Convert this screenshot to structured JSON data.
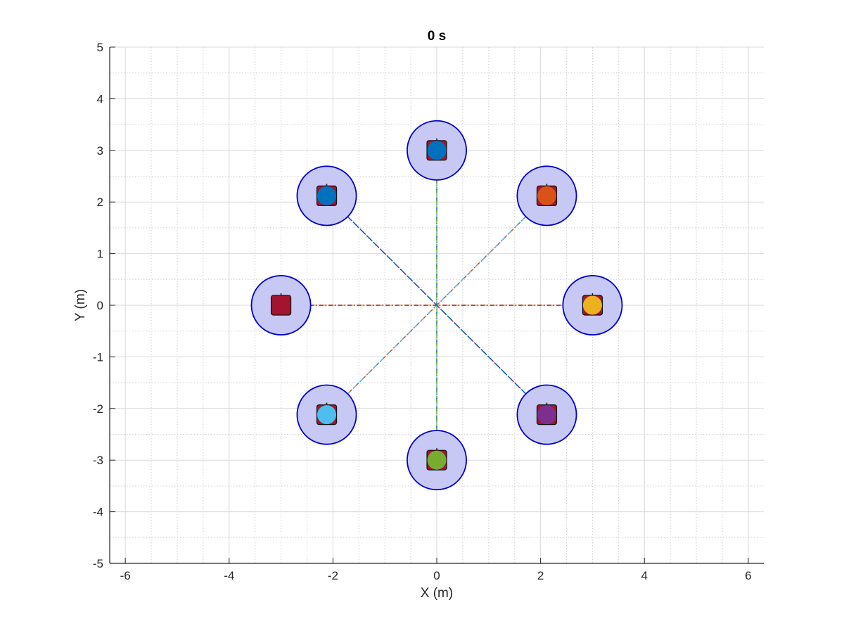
{
  "chart_data": {
    "type": "scatter",
    "title": "0 s",
    "xlabel": "X (m)",
    "ylabel": "Y (m)",
    "xlim": [
      -6.3,
      6.3
    ],
    "ylim": [
      -5,
      5
    ],
    "xticks": [
      -6,
      -4,
      -2,
      0,
      2,
      4,
      6
    ],
    "yticks": [
      -5,
      -4,
      -3,
      -2,
      -1,
      0,
      1,
      2,
      3,
      4,
      5
    ],
    "grid": true,
    "minor_grid": true,
    "safety_radius": 0.57,
    "robots": [
      {
        "x": 0,
        "y": 3,
        "color": "#0072BD",
        "goal": [
          0,
          -3
        ]
      },
      {
        "x": 2.12,
        "y": 2.12,
        "color": "#D95319",
        "goal": [
          -2.12,
          -2.12
        ]
      },
      {
        "x": 3,
        "y": 0,
        "color": "#EDB120",
        "goal": [
          -3,
          0
        ]
      },
      {
        "x": 2.12,
        "y": -2.12,
        "color": "#7E2F8E",
        "goal": [
          -2.12,
          2.12
        ]
      },
      {
        "x": 0,
        "y": -3,
        "color": "#77AC30",
        "goal": [
          0,
          3
        ]
      },
      {
        "x": -2.12,
        "y": -2.12,
        "color": "#4DBEEE",
        "goal": [
          2.12,
          2.12
        ]
      },
      {
        "x": -3,
        "y": 0,
        "color": "#A2142F",
        "goal": [
          3,
          0
        ]
      },
      {
        "x": -2.12,
        "y": 2.12,
        "color": "#0072BD",
        "goal": [
          2.12,
          -2.12
        ]
      }
    ],
    "colors": {
      "safety_fill": "#c8c8f5",
      "safety_edge": "#0000cc",
      "body_fill": "#a2142f",
      "axis": "#262626",
      "grid": "#d9d9d9"
    }
  }
}
